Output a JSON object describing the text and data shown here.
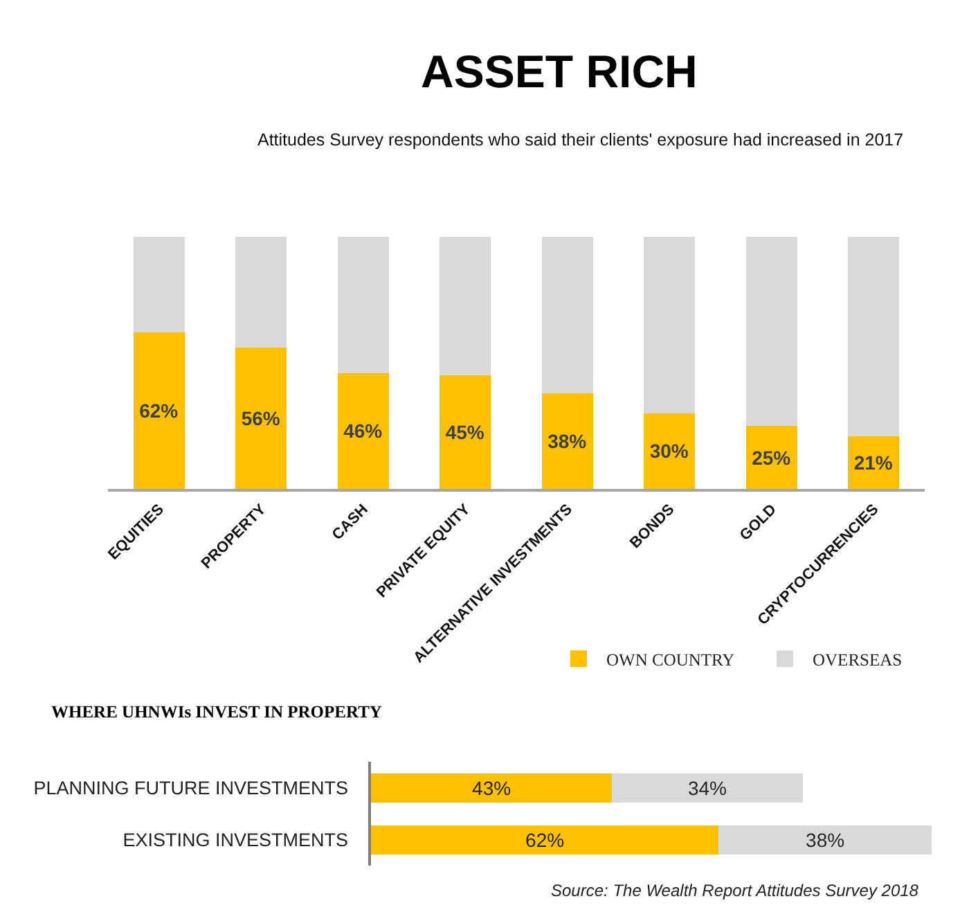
{
  "chart_data": [
    {
      "type": "bar",
      "title": "ASSET RICH",
      "subtitle": "Attitudes Survey respondents who said their clients' exposure had increased in 2017",
      "categories": [
        "EQUITIES",
        "PROPERTY",
        "CASH",
        "PRIVATE EQUITY",
        "ALTERNATIVE INVESTMENTS",
        "BONDS",
        "GOLD",
        "CRYPTOCURRENCIES"
      ],
      "stacked": true,
      "ylim": [
        0,
        100
      ],
      "tick_labels": "x",
      "series": [
        {
          "color": "#ffc000",
          "values": [
            62,
            56,
            46,
            45,
            38,
            30,
            25,
            21
          ],
          "value_labels": [
            "62%",
            "56%",
            "46%",
            "45%",
            "38%",
            "30%",
            "25%",
            "21%"
          ]
        },
        {
          "color": "#d9d9d9",
          "values": [
            38,
            44,
            54,
            55,
            62,
            70,
            75,
            79
          ]
        }
      ]
    },
    {
      "type": "bar",
      "title": "WHERE UHNWIs INVEST IN PROPERTY",
      "orientation": "horizontal",
      "stacked": true,
      "categories": [
        "PLANNING FUTURE INVESTMENTS",
        "EXISTING INVESTMENTS"
      ],
      "xlim": [
        0,
        100
      ],
      "tick_labels": "y",
      "legend": "top right",
      "series": [
        {
          "name": "OWN COUNTRY",
          "color": "#ffc000",
          "values": [
            43,
            62
          ],
          "value_labels": [
            "43%",
            "62%"
          ]
        },
        {
          "name": "OVERSEAS",
          "color": "#d9d9d9",
          "values": [
            34,
            38
          ],
          "value_labels": [
            "34%",
            "38%"
          ]
        }
      ],
      "annotations": [
        "Source: The Wealth Report Attitudes Survey 2018"
      ]
    }
  ]
}
